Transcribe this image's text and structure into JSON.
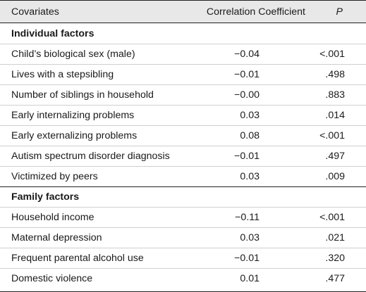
{
  "header": {
    "covariates": "Covariates",
    "coefficient": "Correlation Coefficient",
    "p": "P"
  },
  "groups": [
    {
      "title": "Individual factors",
      "rows": [
        {
          "name": "Child’s biological sex (male)",
          "coef": "−0.04",
          "p": "<.001"
        },
        {
          "name": "Lives with a stepsibling",
          "coef": "−0.01",
          "p": ".498"
        },
        {
          "name": "Number of siblings in household",
          "coef": "−0.00",
          "p": ".883"
        },
        {
          "name": "Early internalizing problems",
          "coef": "0.03",
          "p": ".014"
        },
        {
          "name": "Early externalizing problems",
          "coef": "0.08",
          "p": "<.001"
        },
        {
          "name": "Autism spectrum disorder diagnosis",
          "coef": "−0.01",
          "p": ".497"
        },
        {
          "name": "Victimized by peers",
          "coef": "0.03",
          "p": ".009"
        }
      ]
    },
    {
      "title": "Family factors",
      "rows": [
        {
          "name": "Household income",
          "coef": "−0.11",
          "p": "<.001"
        },
        {
          "name": "Maternal depression",
          "coef": "0.03",
          "p": ".021"
        },
        {
          "name": "Frequent parental alcohol use",
          "coef": "−0.01",
          "p": ".320"
        },
        {
          "name": "Domestic violence",
          "coef": "0.01",
          "p": ".477"
        }
      ]
    }
  ]
}
